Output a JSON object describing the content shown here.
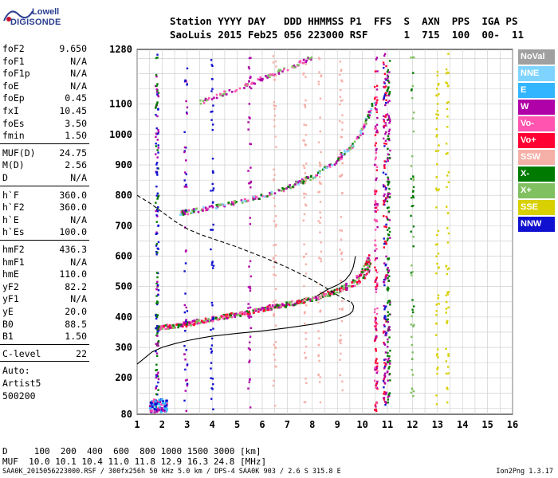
{
  "logo": {
    "top": "Lowell",
    "main": "DIGISONDE"
  },
  "header": {
    "row1": "Station YYYY DAY   DDD HHMMSS P1  FFS  S  AXN  PPS  IGA PS",
    "row2": "SaoLuis 2015 Feb25 056 223000 RSF      1  715  100  00-  11"
  },
  "params": [
    {
      "label": "foF2",
      "value": "9.650"
    },
    {
      "label": "foF1",
      "value": "N/A"
    },
    {
      "label": "foF1p",
      "value": "N/A"
    },
    {
      "label": "foE",
      "value": "N/A"
    },
    {
      "label": "foEp",
      "value": "0.45"
    },
    {
      "label": "fxI",
      "value": "10.45"
    },
    {
      "label": "foEs",
      "value": "3.50"
    },
    {
      "label": "fmin",
      "value": "1.50"
    },
    {
      "label": "MUF(D)",
      "value": "24.75"
    },
    {
      "label": "M(D)",
      "value": "2.56"
    },
    {
      "label": "D",
      "value": "N/A"
    },
    {
      "label": "h`F",
      "value": "360.0"
    },
    {
      "label": "h`F2",
      "value": "360.0"
    },
    {
      "label": "h`E",
      "value": "N/A"
    },
    {
      "label": "h`Es",
      "value": "100.0"
    },
    {
      "label": "hmF2",
      "value": "436.3"
    },
    {
      "label": "hmF1",
      "value": "N/A"
    },
    {
      "label": "hmE",
      "value": "110.0"
    },
    {
      "label": "yF2",
      "value": "82.2"
    },
    {
      "label": "yF1",
      "value": "N/A"
    },
    {
      "label": "yE",
      "value": "20.0"
    },
    {
      "label": "B0",
      "value": "88.5"
    },
    {
      "label": "B1",
      "value": "1.50"
    },
    {
      "label": "C-level",
      "value": "22"
    }
  ],
  "autoscaling": [
    "Auto:",
    "Artist5",
    "500200"
  ],
  "legend": [
    {
      "label": "NoVal",
      "color": "#a0a0a0"
    },
    {
      "label": "NNE",
      "color": "#7fd4ff"
    },
    {
      "label": "E",
      "color": "#33b5ff"
    },
    {
      "label": "W",
      "color": "#b000a8"
    },
    {
      "label": "Vo-",
      "color": "#ff55b0"
    },
    {
      "label": "Vo+",
      "color": "#ff0033"
    },
    {
      "label": "SSW",
      "color": "#f5b0a8"
    },
    {
      "label": "X-",
      "color": "#007a00"
    },
    {
      "label": "X+",
      "color": "#80c060"
    },
    {
      "label": "SSE",
      "color": "#d8d000"
    },
    {
      "label": "NNW",
      "color": "#1010d0"
    }
  ],
  "muf_scale": {
    "d_row": "D     100  200  400  600  800 1000 1500 3000 [km]",
    "muf_row": "MUF  10.0 10.1 10.4 11.0 11.8 12.9 16.3 24.8 [MHz]"
  },
  "footer": {
    "left": "SAA0K_2015056223000.RSF / 300fx256h 50 kHz 5.0 km / DPS-4 SAA0K 903 / 2.6 S 315.8 E",
    "right": "Ion2Png 1.3.17"
  },
  "chart_data": {
    "type": "scatter",
    "title": "",
    "xlabel": "",
    "ylabel": "",
    "xlim": [
      1,
      16
    ],
    "ylim": [
      80,
      1280
    ],
    "x_ticks": [
      1,
      2,
      3,
      4,
      5,
      6,
      7,
      8,
      9,
      10,
      11,
      12,
      13,
      14,
      15,
      16
    ],
    "y_ticks": [
      80,
      200,
      300,
      400,
      500,
      600,
      700,
      800,
      900,
      1000,
      1100,
      1280
    ],
    "grid": true,
    "series": [
      {
        "name": "o-trace F2",
        "color": "#ff55b0",
        "x": [
          1.8,
          2.2,
          2.6,
          3.0,
          3.5,
          4.0,
          4.5,
          5.0,
          5.5,
          6.0,
          6.5,
          7.0,
          7.5,
          8.0,
          8.5,
          9.0,
          9.3,
          9.6,
          9.8,
          10.0,
          10.1,
          10.2,
          10.3
        ],
        "y": [
          365,
          368,
          372,
          378,
          386,
          393,
          402,
          410,
          418,
          426,
          434,
          442,
          450,
          460,
          472,
          487,
          500,
          515,
          528,
          548,
          562,
          580,
          600
        ]
      },
      {
        "name": "x-trace F2",
        "color": "#007a00",
        "x": [
          1.8,
          2.2,
          2.6,
          3.0,
          3.5,
          4.0,
          4.5,
          5.0,
          5.5,
          6.0,
          6.5,
          7.0,
          7.5,
          8.0,
          8.5,
          9.0,
          9.5,
          10.0,
          10.2,
          10.3
        ],
        "y": [
          362,
          366,
          370,
          376,
          384,
          392,
          400,
          408,
          416,
          424,
          432,
          440,
          449,
          458,
          470,
          485,
          502,
          520,
          545,
          580
        ]
      },
      {
        "name": "2F o-trace",
        "color": "#ff55b0",
        "x": [
          2.7,
          3.0,
          3.5,
          4.0,
          4.5,
          5.0,
          5.5,
          6.0,
          6.5,
          7.0,
          7.5,
          8.0,
          8.5,
          9.0,
          9.3,
          9.6,
          9.9,
          10.1,
          10.3,
          10.5
        ],
        "y": [
          740,
          745,
          752,
          760,
          768,
          777,
          787,
          797,
          810,
          825,
          842,
          860,
          885,
          915,
          940,
          965,
          995,
          1030,
          1075,
          1110
        ]
      },
      {
        "name": "3F trace",
        "color": "#9040a0",
        "x": [
          3.5,
          4.0,
          4.5,
          5.0,
          5.5,
          6.0,
          6.5,
          7.0,
          7.5,
          8.0
        ],
        "y": [
          1105,
          1120,
          1135,
          1150,
          1165,
          1185,
          1200,
          1215,
          1235,
          1255
        ]
      },
      {
        "name": "true height profile",
        "color": "#000000",
        "x": [
          1.0,
          1.3,
          1.6,
          2.0,
          2.5,
          3.0,
          3.5,
          4.0,
          5.0,
          6.0,
          7.0,
          7.5,
          8.0,
          8.5,
          9.0,
          9.3,
          9.5,
          9.62,
          9.65,
          9.55
        ],
        "y": [
          245,
          265,
          285,
          300,
          312,
          322,
          330,
          337,
          346,
          354,
          364,
          370,
          376,
          384,
          394,
          402,
          410,
          420,
          436,
          450
        ]
      },
      {
        "name": "model profile",
        "color": "#000000",
        "x": [
          8.2,
          8.6,
          9.0,
          9.3,
          9.5,
          9.62,
          9.68,
          9.72
        ],
        "y": [
          470,
          490,
          505,
          520,
          540,
          560,
          580,
          600
        ]
      },
      {
        "name": "dashed profile",
        "color": "#000000",
        "x": [
          1.0,
          1.5,
          2.0,
          2.5,
          3.0,
          3.5,
          4.0,
          5.0,
          6.0,
          7.0,
          8.0,
          8.6,
          9.0,
          9.3,
          9.5
        ],
        "y": [
          800,
          775,
          745,
          715,
          690,
          672,
          658,
          630,
          598,
          563,
          522,
          493,
          472,
          458,
          450
        ]
      }
    ]
  }
}
